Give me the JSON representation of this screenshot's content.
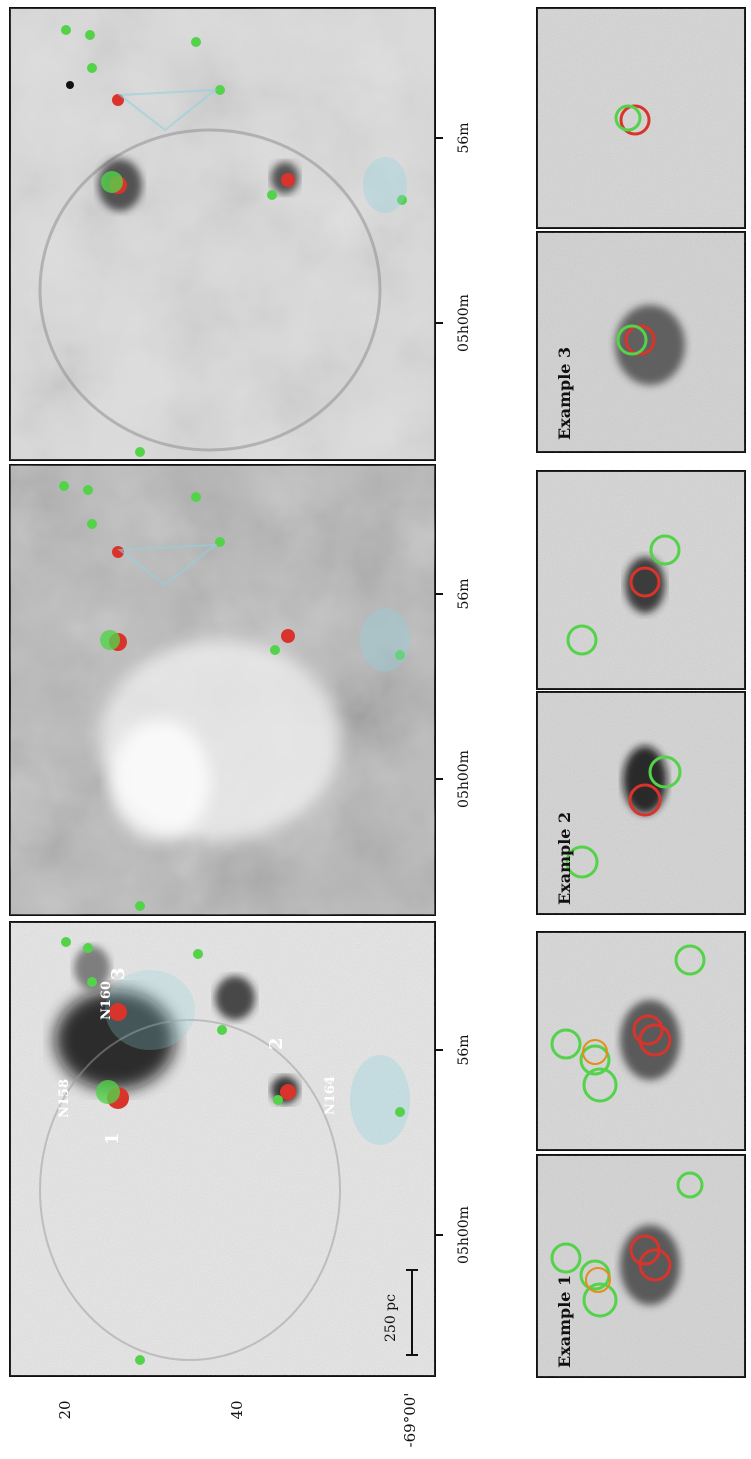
{
  "figure": {
    "scale_bar_label": "250 pc",
    "ra_ticks": [
      "05h00m",
      "56m",
      "05h00m",
      "56m",
      "05h00m",
      "56m"
    ],
    "dec_ticks": [
      "20",
      "40",
      "-69°00'"
    ],
    "panel_labels": [
      "Example 1",
      "Example 2",
      "Example 3"
    ],
    "region_labels": [
      "N158",
      "N160",
      "N164",
      "2",
      "1",
      "3"
    ],
    "colors": {
      "red": "#d9342b",
      "green": "#53d24a",
      "cyan": "#8fd2dc",
      "frame": "#111111"
    },
    "icons": [
      "scale-bar-icon"
    ]
  }
}
